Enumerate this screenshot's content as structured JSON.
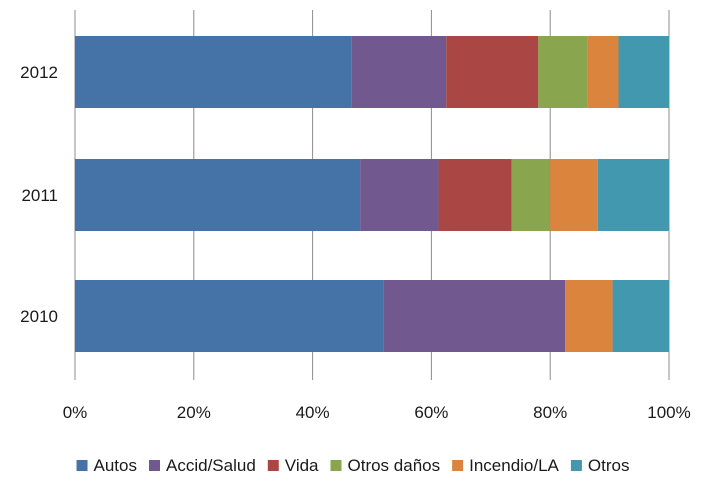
{
  "chart_data": {
    "type": "bar",
    "orientation": "horizontal",
    "stacked": "percent",
    "categories": [
      "2012",
      "2011",
      "2010"
    ],
    "series": [
      {
        "name": "Autos",
        "color": "#4572A7",
        "values": [
          46.5,
          48.0,
          52.0
        ]
      },
      {
        "name": "Accid/Salud",
        "color": "#71588F",
        "values": [
          16.0,
          13.2,
          30.5
        ]
      },
      {
        "name": "Vida",
        "color": "#AA4643",
        "values": [
          15.5,
          12.3,
          0.0
        ]
      },
      {
        "name": "Otros daños",
        "color": "#89A54E",
        "values": [
          8.3,
          6.5,
          0.0
        ]
      },
      {
        "name": "Incendio/LA",
        "color": "#DB843D",
        "values": [
          5.2,
          8.0,
          8.0
        ]
      },
      {
        "name": "Otros",
        "color": "#4198AF",
        "values": [
          8.5,
          12.0,
          9.5
        ]
      }
    ],
    "x_ticks": [
      "0%",
      "20%",
      "40%",
      "60%",
      "80%",
      "100%"
    ],
    "xlim": [
      0,
      100
    ],
    "grid": true,
    "legend_position": "bottom",
    "title": "",
    "xlabel": "",
    "ylabel": ""
  }
}
